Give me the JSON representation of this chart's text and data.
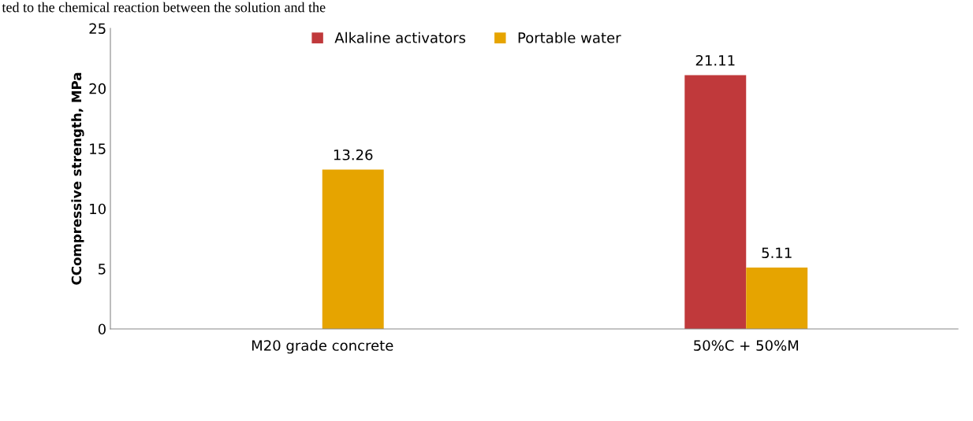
{
  "chart_data": {
    "type": "bar",
    "ylabel": "CCompressive strength, MPa",
    "categories": [
      "M20 grade concrete",
      "50%C + 50%M"
    ],
    "series": [
      {
        "name": "Alkaline activators",
        "color": "#c0393b",
        "values": [
          null,
          21.11
        ]
      },
      {
        "name": "Portable water",
        "color": "#e6a400",
        "values": [
          13.26,
          5.11
        ]
      }
    ],
    "ylim": [
      0,
      25
    ],
    "yticks": [
      0,
      5,
      10,
      15,
      20,
      25
    ],
    "grid": false,
    "legend": "top",
    "data_labels": true,
    "annotations": [
      "ted to the chemical reaction between the solution and the"
    ]
  }
}
